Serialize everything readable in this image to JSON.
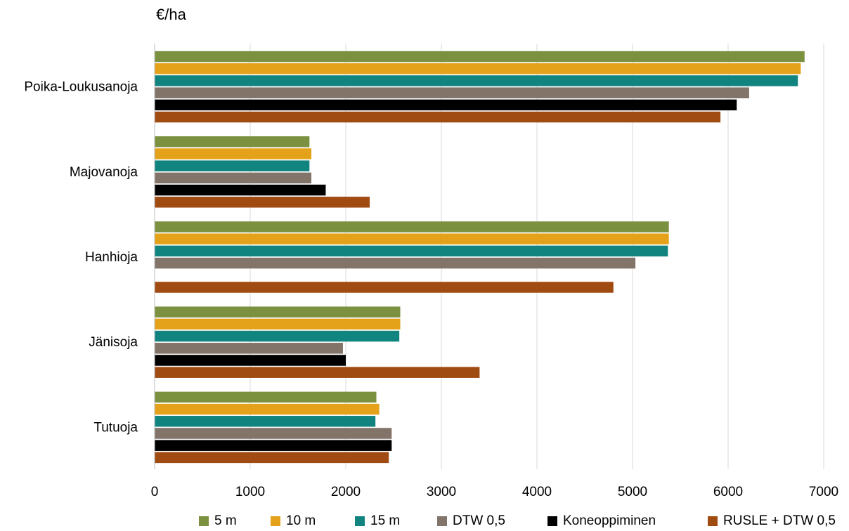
{
  "chart_data": {
    "type": "bar",
    "orientation": "horizontal",
    "unit_label": "€/ha",
    "xlim": [
      0,
      7000
    ],
    "x_ticks": [
      "0",
      "1000",
      "2000",
      "3000",
      "4000",
      "5000",
      "6000",
      "7000"
    ],
    "x_tick_values": [
      0,
      1000,
      2000,
      3000,
      4000,
      5000,
      6000,
      7000
    ],
    "grid": "vertical",
    "legend_position": "bottom",
    "categories": [
      "Poika-Loukusanoja",
      "Majovanoja",
      "Hanhioja",
      "Jänisoja",
      "Tutuoja"
    ],
    "series": [
      {
        "name": "5 m",
        "color": "#7b9140",
        "values": [
          6800,
          1620,
          5380,
          2570,
          2320
        ]
      },
      {
        "name": "10 m",
        "color": "#e3a21a",
        "values": [
          6760,
          1640,
          5380,
          2570,
          2350
        ]
      },
      {
        "name": "15 m",
        "color": "#12847f",
        "values": [
          6730,
          1620,
          5370,
          2560,
          2310
        ]
      },
      {
        "name": "DTW 0,5",
        "color": "#827469",
        "values": [
          6220,
          1640,
          5030,
          1970,
          2480
        ]
      },
      {
        "name": "Koneoppiminen",
        "color": "#000000",
        "values": [
          6090,
          1790,
          null,
          2000,
          2480
        ]
      },
      {
        "name": "RUSLE + DTW 0,5",
        "color": "#a04b12",
        "values": [
          5920,
          2250,
          4800,
          3400,
          2450
        ]
      }
    ]
  }
}
